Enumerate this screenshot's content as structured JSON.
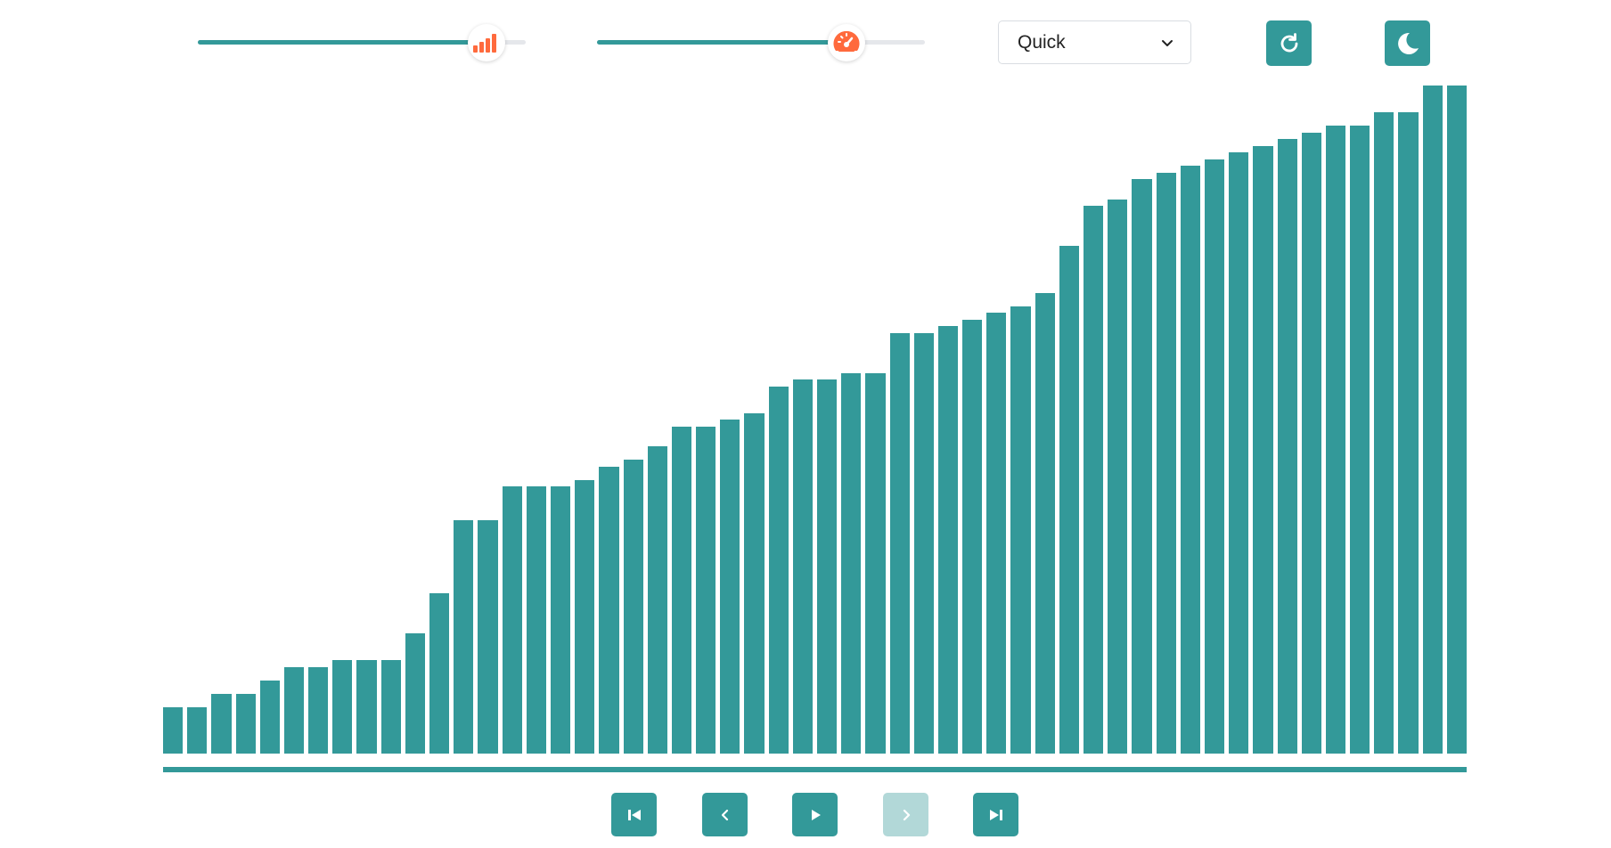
{
  "controls": {
    "size_slider": {
      "icon": "signal-bars-icon",
      "value_fraction": 0.88
    },
    "speed_slider": {
      "icon": "speedometer-icon",
      "value_fraction": 0.76
    },
    "algorithm_select": {
      "selected": "Quick"
    },
    "reset_icon": "refresh-icon",
    "theme_icon": "moon-icon"
  },
  "playback": {
    "buttons": [
      {
        "name": "skip-to-start-button",
        "icon": "skip-back-icon",
        "enabled": true
      },
      {
        "name": "step-back-button",
        "icon": "chevron-left-icon",
        "enabled": true
      },
      {
        "name": "play-button",
        "icon": "play-icon",
        "enabled": true
      },
      {
        "name": "step-forward-button",
        "icon": "chevron-right-icon",
        "enabled": false
      },
      {
        "name": "skip-to-end-button",
        "icon": "skip-forward-icon",
        "enabled": true
      }
    ]
  },
  "colors": {
    "accent": "#339999",
    "accent_disabled": "#b2d8d8",
    "icon_accent": "#ff6a3d"
  },
  "chart_data": {
    "type": "bar",
    "ylim": [
      0,
      100
    ],
    "values": [
      7,
      7,
      9,
      9,
      11,
      13,
      13,
      14,
      14,
      14,
      18,
      24,
      35,
      35,
      40,
      40,
      40,
      41,
      43,
      44,
      46,
      49,
      49,
      50,
      51,
      55,
      56,
      56,
      57,
      57,
      63,
      63,
      64,
      65,
      66,
      67,
      69,
      76,
      82,
      83,
      86,
      87,
      88,
      89,
      90,
      91,
      92,
      93,
      94,
      94,
      96,
      96,
      100,
      100
    ]
  }
}
